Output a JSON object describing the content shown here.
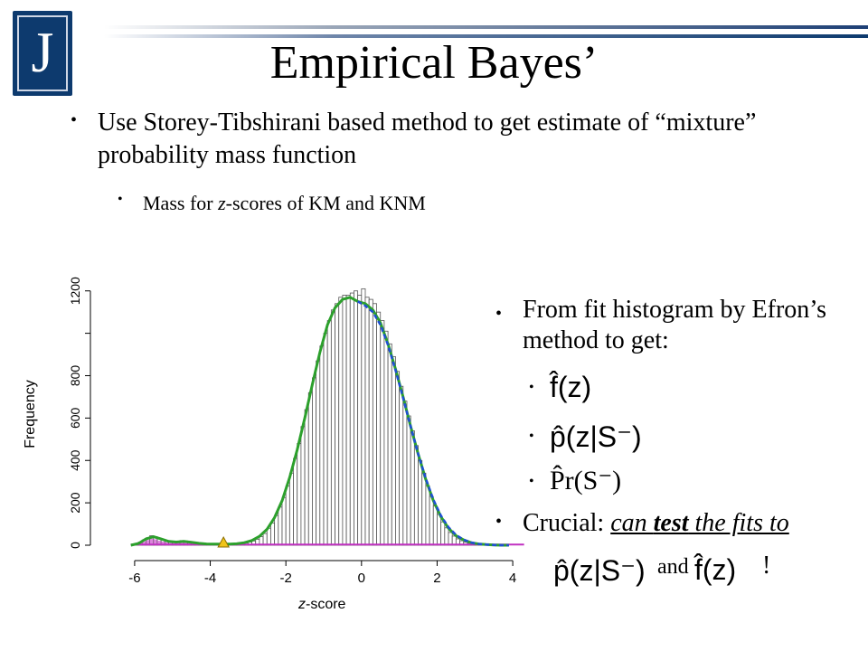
{
  "slide": {
    "logo_letter": "J",
    "title": "Empirical Bayes’",
    "bullet_main": "Use Storey-Tibshirani based method to get estimate of “mixture” probability mass function",
    "bullet_sub_pre": "Mass for ",
    "bullet_sub_var": "z",
    "bullet_sub_post": "-scores of KM and KNM",
    "right_bullet1": "From fit histogram by Efron’s method to get:",
    "formula_f": "f̂(z)",
    "formula_p": "p̂(z|S⁻)",
    "formula_pr": "P̂r(S⁻)",
    "crucial_label": "Crucial: ",
    "crucial_rest": "can test the fits to",
    "crucial_test_word": "test",
    "and_text": "and",
    "exclaim": "!",
    "xcap_var": "z",
    "xcap_rest": "-score"
  },
  "chart_data": {
    "type": "bar",
    "ylabel": "Frequency",
    "xlabel": "z-score",
    "xlim": [
      -6.5,
      4.5
    ],
    "ylim": [
      0,
      1250
    ],
    "xticks": [
      -6,
      -4,
      -2,
      0,
      2,
      4
    ],
    "yticks": [
      0,
      200,
      400,
      600,
      800,
      1000,
      1200
    ],
    "ytick_labels": [
      "0",
      "200",
      "400",
      "600",
      "800",
      "",
      "1200"
    ],
    "bin_width": 0.1,
    "bins_x": [
      -6.0,
      -5.9,
      -5.8,
      -5.7,
      -5.6,
      -5.5,
      -5.4,
      -5.3,
      -5.2,
      -5.1,
      -5.0,
      -4.9,
      -4.8,
      -4.7,
      -4.6,
      -4.5,
      -4.4,
      -4.3,
      -4.2,
      -4.1,
      -4.0,
      -3.9,
      -3.8,
      -3.7,
      -3.6,
      -3.5,
      -3.4,
      -3.3,
      -3.2,
      -3.1,
      -3.0,
      -2.9,
      -2.8,
      -2.7,
      -2.6,
      -2.5,
      -2.4,
      -2.3,
      -2.2,
      -2.1,
      -2.0,
      -1.9,
      -1.8,
      -1.7,
      -1.6,
      -1.5,
      -1.4,
      -1.3,
      -1.2,
      -1.1,
      -1.0,
      -0.9,
      -0.8,
      -0.7,
      -0.6,
      -0.5,
      -0.4,
      -0.3,
      -0.2,
      -0.1,
      0.0,
      0.1,
      0.2,
      0.3,
      0.4,
      0.5,
      0.6,
      0.7,
      0.8,
      0.9,
      1.0,
      1.1,
      1.2,
      1.3,
      1.4,
      1.5,
      1.6,
      1.7,
      1.8,
      1.9,
      2.0,
      2.1,
      2.2,
      2.3,
      2.4,
      2.5,
      2.6,
      2.7,
      2.8,
      2.9,
      3.0,
      3.1,
      3.2,
      3.3,
      3.4,
      3.5,
      3.6,
      3.7,
      3.8,
      3.9
    ],
    "bins_y": [
      8,
      15,
      25,
      35,
      45,
      40,
      30,
      25,
      20,
      15,
      15,
      18,
      22,
      20,
      15,
      12,
      10,
      8,
      6,
      5,
      5,
      5,
      6,
      5,
      5,
      5,
      6,
      7,
      8,
      10,
      15,
      20,
      28,
      40,
      55,
      80,
      105,
      140,
      180,
      225,
      280,
      340,
      410,
      480,
      560,
      640,
      720,
      790,
      870,
      940,
      1000,
      1060,
      1110,
      1140,
      1170,
      1180,
      1180,
      1190,
      1200,
      1180,
      1210,
      1170,
      1160,
      1140,
      1100,
      1060,
      1010,
      950,
      890,
      820,
      750,
      680,
      610,
      540,
      470,
      400,
      340,
      280,
      230,
      185,
      145,
      110,
      82,
      60,
      43,
      30,
      21,
      14,
      9,
      6,
      4,
      3,
      2,
      1,
      1,
      0,
      0,
      0,
      0,
      0
    ],
    "series": [
      {
        "name": "",
        "x": [
          -6.1,
          -5.9,
          -5.7,
          -5.5,
          -5.3,
          -5.1,
          -4.9,
          -4.7,
          -4.5,
          -4.3,
          -4.1,
          -3.9,
          -3.7,
          -3.5,
          -3.3,
          -3.1,
          -2.9,
          -2.7,
          -2.5,
          -2.3,
          -2.1,
          -1.9,
          -1.7,
          -1.5,
          -1.3,
          -1.1,
          -0.9,
          -0.7,
          -0.5,
          -0.3,
          -0.1,
          0.1,
          0.3,
          0.5,
          0.7,
          0.9,
          1.1,
          1.3,
          1.5,
          1.7,
          1.9,
          2.1,
          2.3,
          2.5,
          2.7,
          2.9,
          3.1,
          3.3,
          3.5,
          3.7,
          3.9
        ],
        "y": [
          0,
          8,
          30,
          40,
          30,
          18,
          15,
          18,
          14,
          9,
          6,
          5,
          5,
          5,
          7,
          12,
          22,
          42,
          75,
          130,
          210,
          320,
          450,
          600,
          760,
          910,
          1040,
          1120,
          1160,
          1170,
          1150,
          1140,
          1110,
          1050,
          950,
          830,
          700,
          560,
          430,
          310,
          210,
          135,
          80,
          45,
          25,
          12,
          6,
          3,
          1,
          0,
          0
        ],
        "color": "#2ca02c"
      },
      {
        "name": "",
        "x": [
          -0.1,
          0.1,
          0.3,
          0.5,
          0.7,
          0.9,
          1.1,
          1.3,
          1.5,
          1.7,
          1.9,
          2.1,
          2.3,
          2.5,
          2.7,
          2.9,
          3.1,
          3.3,
          3.5,
          3.7,
          3.9
        ],
        "y": [
          1150,
          1130,
          1100,
          1040,
          945,
          825,
          695,
          560,
          430,
          315,
          215,
          140,
          85,
          48,
          26,
          13,
          6,
          3,
          1,
          0,
          0
        ],
        "color": "#1f4fd6"
      }
    ],
    "annotations": [
      {
        "type": "triangle-marker",
        "x": -3.65,
        "y": 0,
        "color": "#f0c419"
      }
    ]
  }
}
